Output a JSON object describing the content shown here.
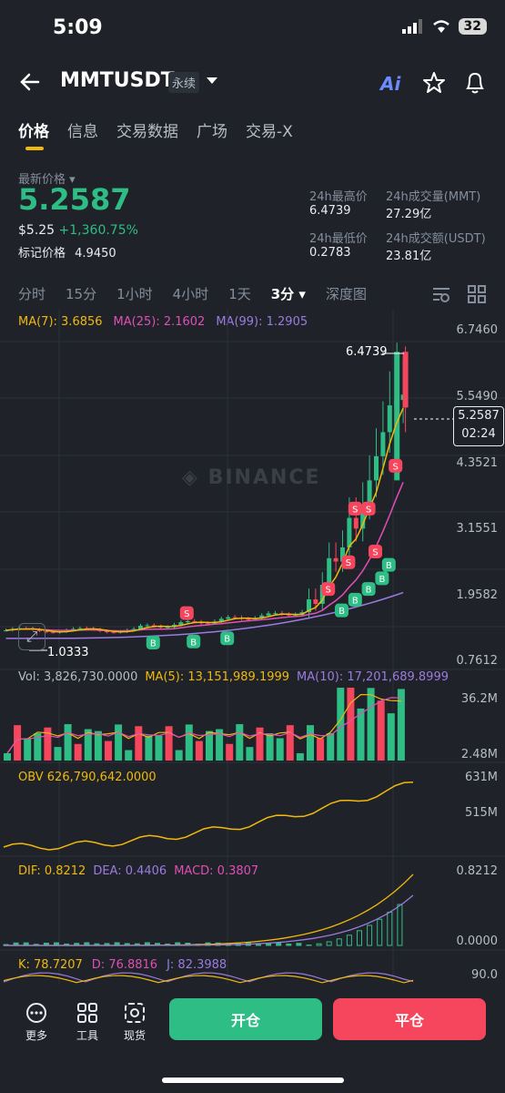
{
  "status": {
    "time": "5:09",
    "battery": "32"
  },
  "header": {
    "symbol": "MMTUSDT",
    "perp_label": "永续",
    "ai_label": "Ai"
  },
  "tabs": [
    "价格",
    "信息",
    "交易数据",
    "广场",
    "交易-X"
  ],
  "ticker": {
    "last_price_label": "最新价格",
    "last_price": "5.2587",
    "usd_price": "$5.25",
    "change_pct": "+1,360.75%",
    "mark_label": "标记价格",
    "mark_price": "4.9450",
    "high_label": "24h最高价",
    "high": "6.4739",
    "low_label": "24h最低价",
    "low": "0.2783",
    "vol_label": "24h成交量(MMT)",
    "vol": "27.29亿",
    "amt_label": "24h成交额(USDT)",
    "amt": "23.81亿"
  },
  "timeframes": [
    "分时",
    "15分",
    "1小时",
    "4小时",
    "1天",
    "3分",
    "深度图"
  ],
  "active_timeframe": "3分",
  "ma": {
    "ma7": "MA(7): 3.6856",
    "ma25": "MA(25): 2.1602",
    "ma99": "MA(99): 1.2905"
  },
  "price_axis": [
    "6.7460",
    "5.5490",
    "4.3521",
    "3.1551",
    "1.9582",
    "0.7612"
  ],
  "price_tags": {
    "high": "6.4739",
    "low": "1.0333",
    "current": "5.2587",
    "countdown": "02:24"
  },
  "watermark": "BINANCE",
  "volume": {
    "label": "Vol: 3,826,730.0000",
    "ma5": "MA(5): 13,151,989.1999",
    "ma10": "MA(10): 17,201,689.8999",
    "axis_top": "36.2M",
    "axis_bottom": "2.48M"
  },
  "obv": {
    "label": "OBV 626,790,642.0000",
    "axis_top": "631M",
    "axis_bottom": "515M"
  },
  "macd": {
    "dif": "DIF: 0.8212",
    "dea": "DEA: 0.4406",
    "macd": "MACD: 0.3807",
    "axis_top": "0.8212",
    "axis_bottom": "0.0000"
  },
  "kdj": {
    "k": "K: 78.7207",
    "d": "D: 76.8816",
    "j": "J: 82.3988",
    "axis_top": "90.0"
  },
  "bottom": {
    "more": "更多",
    "tools": "工具",
    "spot": "现货",
    "open": "开仓",
    "close": "平仓"
  },
  "colors": {
    "up": "#2ebd85",
    "down": "#f6465d",
    "accent": "#f0b90b",
    "ma25": "#e04fb5",
    "ma99": "#9b7be0"
  }
}
